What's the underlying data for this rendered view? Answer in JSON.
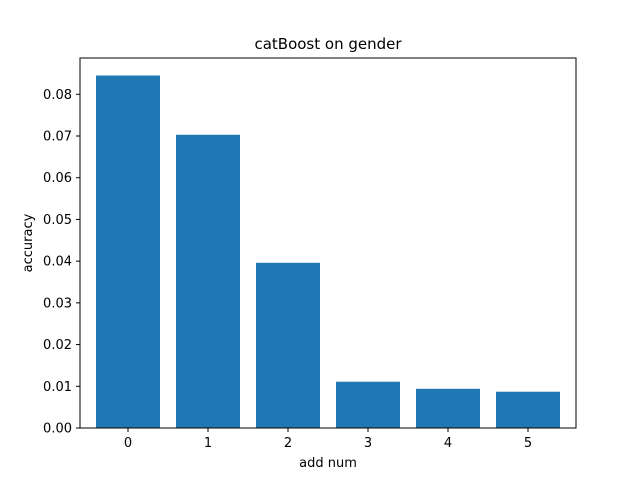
{
  "chart_data": {
    "type": "bar",
    "title": "catBoost on gender",
    "xlabel": "add num",
    "ylabel": "accuracy",
    "categories": [
      "0",
      "1",
      "2",
      "3",
      "4",
      "5"
    ],
    "values": [
      0.0845,
      0.0703,
      0.0396,
      0.0111,
      0.0094,
      0.0087
    ],
    "ylim": [
      0,
      0.0887
    ],
    "yticks": [
      "0.00",
      "0.01",
      "0.02",
      "0.03",
      "0.04",
      "0.05",
      "0.06",
      "0.07",
      "0.08"
    ],
    "grid": false,
    "legend": "none",
    "bar_color": "#1f77b4"
  }
}
